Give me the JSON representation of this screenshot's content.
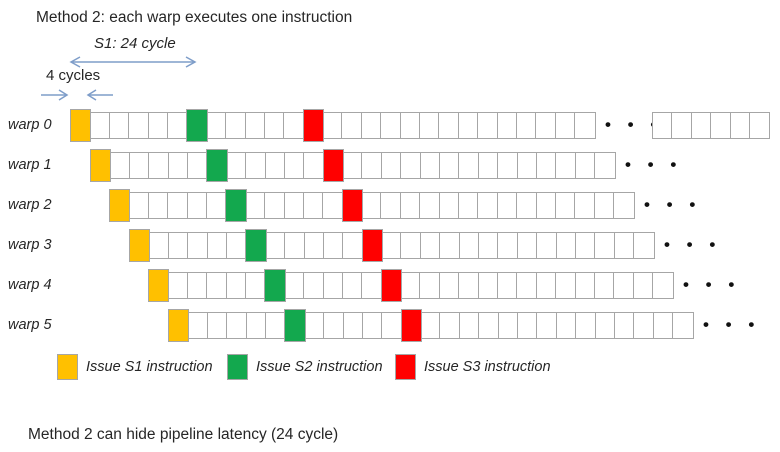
{
  "title": "Method 2: each warp executes one instruction",
  "annotations": {
    "s1_span_label": "S1: 24 cycle",
    "cell_span_label": "4 cycles"
  },
  "rows": [
    {
      "label": "warp 0",
      "extra_segment": true
    },
    {
      "label": "warp 1",
      "extra_segment": false
    },
    {
      "label": "warp 2",
      "extra_segment": false
    },
    {
      "label": "warp 3",
      "extra_segment": false
    },
    {
      "label": "warp 4",
      "extra_segment": false
    },
    {
      "label": "warp 5",
      "extra_segment": false
    }
  ],
  "strip": {
    "cells_per_strip": 27,
    "cycles_per_cell": 4,
    "issue_cells": [
      {
        "cell": 0,
        "color": "orange"
      },
      {
        "cell": 6,
        "color": "green"
      },
      {
        "cell": 12,
        "color": "red"
      }
    ],
    "extra_cells": 6
  },
  "ellipsis": "• • •",
  "legend": {
    "items": [
      {
        "color": "orange",
        "label": "Issue S1 instruction"
      },
      {
        "color": "green",
        "label": "Issue S2 instruction"
      },
      {
        "color": "red",
        "label": "Issue S3 instruction"
      }
    ]
  },
  "footer": "Method 2 can hide pipeline latency (24 cycle)",
  "colors": {
    "orange": "#FFC000",
    "green": "#13A84E",
    "red": "#FF0000",
    "grid_border": "#A6A6A6",
    "arrow_blue": "#7E9DC9",
    "text": "#262626"
  }
}
